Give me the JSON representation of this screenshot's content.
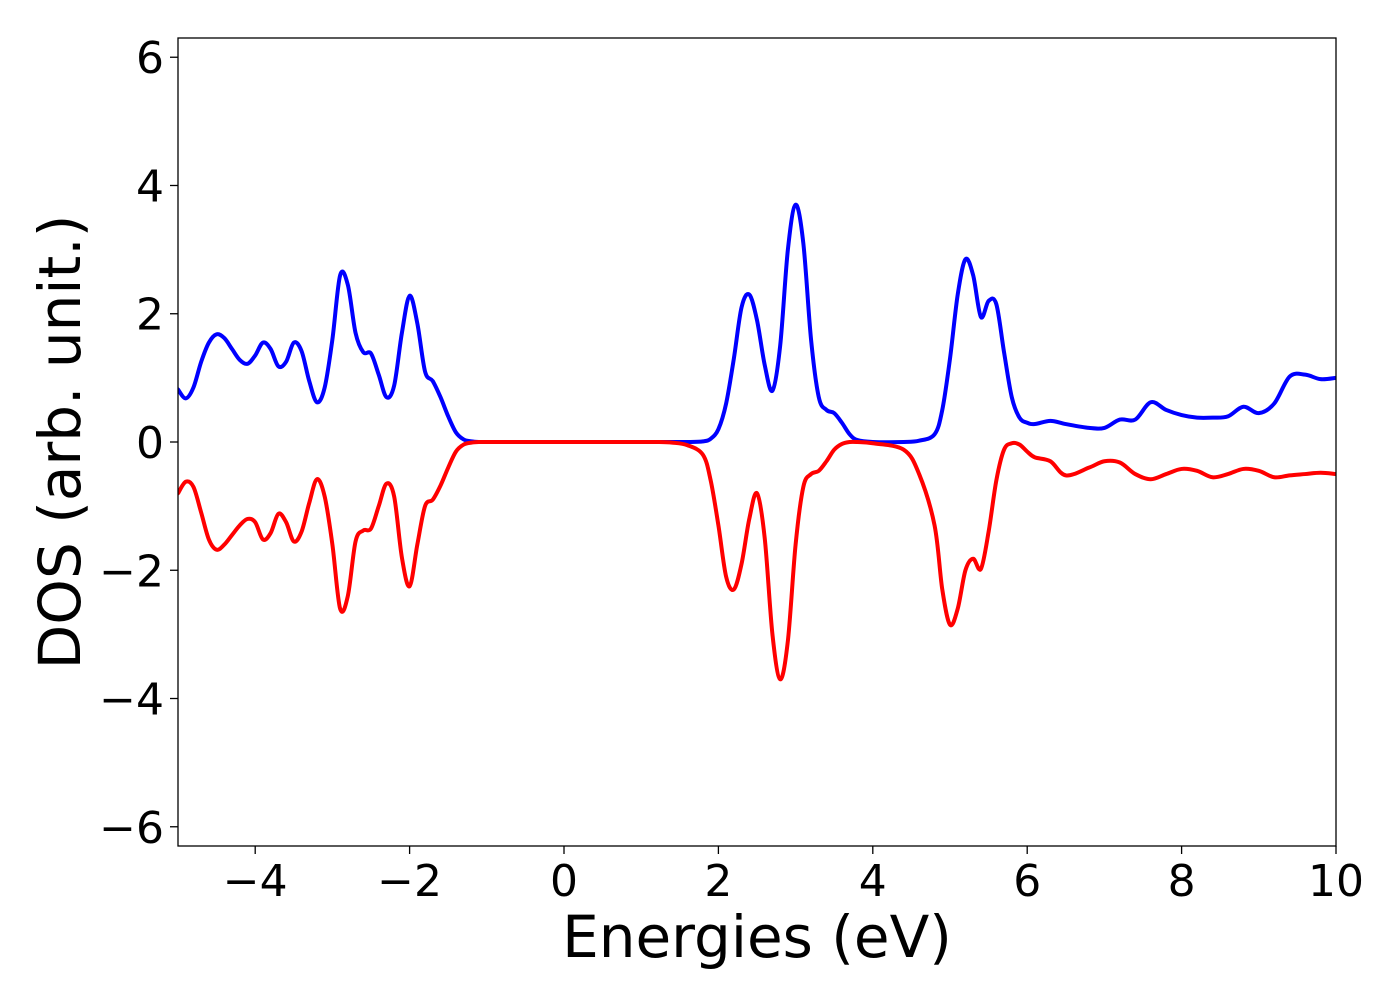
{
  "chart_data": {
    "type": "line",
    "title": "",
    "xlabel": "Energies (eV)",
    "ylabel": "DOS (arb. unit.)",
    "xlim": [
      -5,
      10
    ],
    "ylim": [
      -6.3,
      6.3
    ],
    "xticks": [
      -4,
      -2,
      0,
      2,
      4,
      6,
      8,
      10
    ],
    "xtick_labels": [
      "−4",
      "−2",
      "0",
      "2",
      "4",
      "6",
      "8",
      "10"
    ],
    "yticks": [
      -6,
      -4,
      -2,
      0,
      2,
      4,
      6
    ],
    "ytick_labels": [
      "−6",
      "−4",
      "−2",
      "0",
      "2",
      "4",
      "6"
    ],
    "grid": false,
    "legend": "none",
    "series": [
      {
        "color": "#0000ff",
        "x": [
          -5.0,
          -4.9,
          -4.8,
          -4.7,
          -4.6,
          -4.5,
          -4.4,
          -4.3,
          -4.2,
          -4.1,
          -4.0,
          -3.9,
          -3.8,
          -3.7,
          -3.6,
          -3.5,
          -3.4,
          -3.3,
          -3.2,
          -3.1,
          -3.0,
          -2.9,
          -2.8,
          -2.7,
          -2.6,
          -2.5,
          -2.4,
          -2.3,
          -2.2,
          -2.1,
          -2.0,
          -1.9,
          -1.8,
          -1.7,
          -1.6,
          -1.5,
          -1.4,
          -1.3,
          -1.2,
          -1.1,
          -1.0,
          -0.9,
          -0.8,
          -0.7,
          -0.6,
          -0.5,
          0.0,
          0.5,
          1.0,
          1.2,
          1.4,
          1.6,
          1.8,
          1.9,
          2.0,
          2.1,
          2.2,
          2.3,
          2.4,
          2.5,
          2.6,
          2.7,
          2.8,
          2.9,
          3.0,
          3.1,
          3.2,
          3.3,
          3.4,
          3.5,
          3.6,
          3.7,
          3.8,
          4.0,
          4.4,
          4.6,
          4.8,
          4.9,
          5.0,
          5.1,
          5.2,
          5.3,
          5.4,
          5.5,
          5.6,
          5.7,
          5.8,
          5.9,
          6.0,
          6.1,
          6.3,
          6.5,
          6.8,
          7.0,
          7.2,
          7.4,
          7.6,
          7.8,
          8.0,
          8.2,
          8.4,
          8.6,
          8.8,
          9.0,
          9.2,
          9.4,
          9.6,
          9.8,
          10.0
        ],
        "y": [
          0.82,
          0.68,
          0.85,
          1.25,
          1.55,
          1.68,
          1.62,
          1.45,
          1.28,
          1.22,
          1.35,
          1.55,
          1.45,
          1.18,
          1.25,
          1.55,
          1.42,
          0.95,
          0.62,
          0.85,
          1.6,
          2.6,
          2.45,
          1.7,
          1.4,
          1.38,
          1.05,
          0.7,
          0.88,
          1.7,
          2.28,
          1.85,
          1.1,
          0.95,
          0.7,
          0.4,
          0.15,
          0.04,
          0.01,
          0.0,
          0.0,
          0.0,
          0.0,
          0.0,
          0.0,
          0.0,
          0.0,
          0.0,
          0.0,
          0.0,
          0.0,
          0.0,
          0.01,
          0.05,
          0.2,
          0.6,
          1.3,
          2.1,
          2.3,
          1.9,
          1.2,
          0.8,
          1.5,
          3.0,
          3.7,
          3.1,
          1.6,
          0.7,
          0.5,
          0.45,
          0.3,
          0.12,
          0.03,
          0.0,
          0.0,
          0.02,
          0.12,
          0.5,
          1.3,
          2.3,
          2.85,
          2.6,
          1.95,
          2.2,
          2.15,
          1.4,
          0.7,
          0.38,
          0.3,
          0.28,
          0.33,
          0.28,
          0.22,
          0.22,
          0.35,
          0.35,
          0.62,
          0.5,
          0.42,
          0.38,
          0.38,
          0.4,
          0.55,
          0.45,
          0.6,
          1.02,
          1.05,
          0.98,
          1.0
        ]
      },
      {
        "color": "#ff0000",
        "x": [
          -5.0,
          -4.9,
          -4.8,
          -4.7,
          -4.6,
          -4.5,
          -4.4,
          -4.3,
          -4.2,
          -4.1,
          -4.0,
          -3.9,
          -3.8,
          -3.7,
          -3.6,
          -3.5,
          -3.4,
          -3.3,
          -3.2,
          -3.1,
          -3.0,
          -2.9,
          -2.8,
          -2.7,
          -2.6,
          -2.5,
          -2.4,
          -2.3,
          -2.2,
          -2.1,
          -2.0,
          -1.9,
          -1.8,
          -1.7,
          -1.6,
          -1.5,
          -1.4,
          -1.3,
          -1.2,
          -1.1,
          -1.0,
          -0.9,
          -0.8,
          -0.7,
          -0.6,
          -0.5,
          0.0,
          0.5,
          1.0,
          1.2,
          1.4,
          1.6,
          1.8,
          1.9,
          2.0,
          2.1,
          2.2,
          2.3,
          2.4,
          2.5,
          2.6,
          2.7,
          2.8,
          2.9,
          3.0,
          3.1,
          3.2,
          3.3,
          3.4,
          3.5,
          3.6,
          3.7,
          3.8,
          4.0,
          4.4,
          4.6,
          4.8,
          4.9,
          5.0,
          5.1,
          5.2,
          5.3,
          5.4,
          5.5,
          5.6,
          5.7,
          5.8,
          5.9,
          6.0,
          6.1,
          6.3,
          6.5,
          6.8,
          7.0,
          7.2,
          7.4,
          7.6,
          7.8,
          8.0,
          8.2,
          8.4,
          8.6,
          8.8,
          9.0,
          9.2,
          9.4,
          9.6,
          9.8,
          10.0
        ],
        "y": [
          -0.8,
          -0.62,
          -0.7,
          -1.1,
          -1.52,
          -1.68,
          -1.6,
          -1.45,
          -1.3,
          -1.2,
          -1.25,
          -1.52,
          -1.42,
          -1.12,
          -1.25,
          -1.55,
          -1.4,
          -0.95,
          -0.58,
          -0.85,
          -1.6,
          -2.6,
          -2.4,
          -1.55,
          -1.38,
          -1.35,
          -1.0,
          -0.65,
          -0.85,
          -1.8,
          -2.25,
          -1.6,
          -1.0,
          -0.9,
          -0.68,
          -0.4,
          -0.15,
          -0.04,
          -0.01,
          0.0,
          0.0,
          0.0,
          0.0,
          0.0,
          0.0,
          0.0,
          0.0,
          0.0,
          0.0,
          0.0,
          -0.01,
          -0.05,
          -0.2,
          -0.6,
          -1.3,
          -2.1,
          -2.3,
          -1.9,
          -1.2,
          -0.8,
          -1.5,
          -3.0,
          -3.7,
          -3.1,
          -1.6,
          -0.7,
          -0.5,
          -0.45,
          -0.3,
          -0.12,
          -0.03,
          0.0,
          0.0,
          -0.02,
          -0.12,
          -0.5,
          -1.3,
          -2.3,
          -2.85,
          -2.6,
          -2.0,
          -1.82,
          -1.98,
          -1.4,
          -0.6,
          -0.12,
          -0.02,
          -0.04,
          -0.15,
          -0.24,
          -0.3,
          -0.52,
          -0.4,
          -0.3,
          -0.32,
          -0.5,
          -0.58,
          -0.5,
          -0.42,
          -0.45,
          -0.55,
          -0.5,
          -0.42,
          -0.45,
          -0.55,
          -0.52,
          -0.5,
          -0.48,
          -0.5
        ]
      }
    ]
  }
}
